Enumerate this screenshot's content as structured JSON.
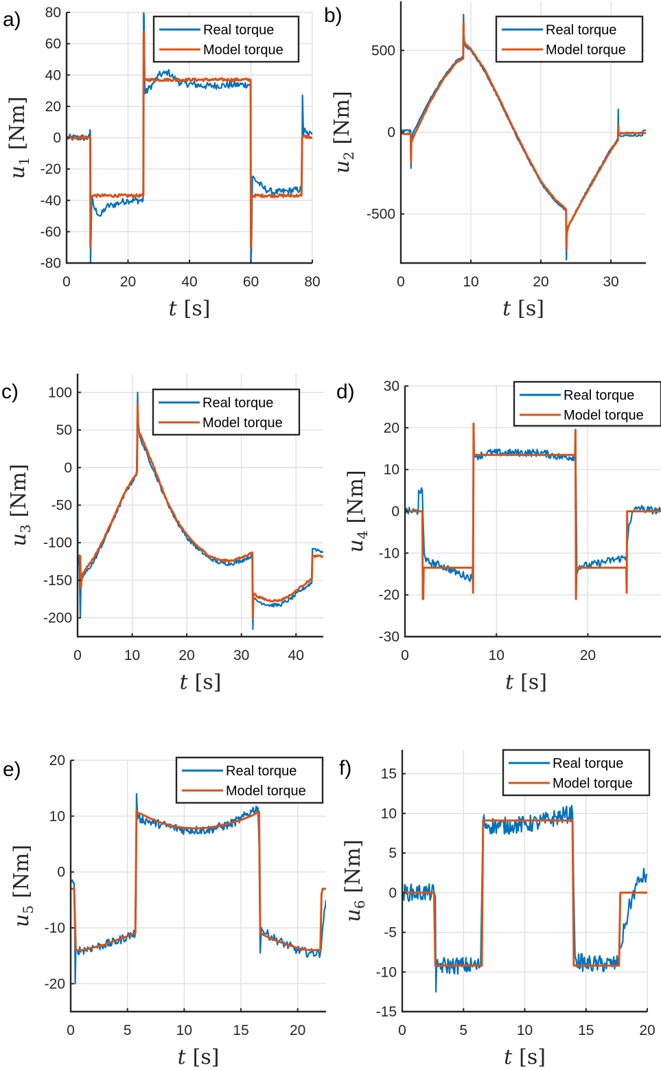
{
  "chart_data": [
    {
      "id": "a",
      "type": "line",
      "panel_label": "a)",
      "title": "",
      "xlabel": "t [s]",
      "ylabel": "u1 [Nm]",
      "ylabel_var": "u",
      "ylabel_sub": "1",
      "ylabel_unit": "[Nm]",
      "xlabel_var": "t",
      "xlabel_unit": "[s]",
      "xlim": [
        0,
        80
      ],
      "ylim": [
        -80,
        80
      ],
      "xticks": [
        0,
        20,
        40,
        60,
        80
      ],
      "yticks": [
        -80,
        -60,
        -40,
        -20,
        0,
        20,
        40,
        60,
        80
      ],
      "grid": true,
      "legend": {
        "position": "top-right",
        "entries": [
          "Real torque",
          "Model torque"
        ]
      },
      "series": [
        {
          "name": "Real torque",
          "color": "#0072BD",
          "noise": 2.2,
          "t": [
            0,
            7.5,
            7.6,
            7.7,
            7.8,
            8.2,
            9,
            11,
            13,
            15,
            18,
            20,
            24.9,
            25.1,
            25.2,
            25.5,
            27,
            28,
            30,
            32,
            33,
            35,
            37,
            45,
            59.8,
            59.9,
            60.0,
            60.2,
            60.5,
            62,
            64,
            66,
            68,
            72,
            76.4,
            76.6,
            76.8,
            77.1,
            77.5,
            78,
            80
          ],
          "v": [
            0,
            0,
            5,
            4,
            -80,
            -38,
            -45,
            -50,
            -44,
            -43,
            -41,
            -40,
            -40,
            80,
            78,
            28,
            32,
            34,
            40,
            41,
            42,
            38,
            35,
            33,
            34,
            34,
            -80,
            -70,
            -25,
            -28,
            -32,
            -34,
            -35,
            -34,
            -33,
            -33,
            27,
            2,
            6,
            3,
            2
          ]
        },
        {
          "name": "Model torque",
          "color": "#D95319",
          "noise": 0.9,
          "t": [
            0,
            7.7,
            7.75,
            7.8,
            7.9,
            24.9,
            25.0,
            25.1,
            25.2,
            25.3,
            59.8,
            59.9,
            60.0,
            60.1,
            60.2,
            76.5,
            76.7,
            77.0,
            80
          ],
          "v": [
            0,
            0,
            -70,
            -70,
            -37,
            -37,
            -37,
            68,
            68,
            37,
            37,
            37,
            -70,
            -70,
            -37,
            -37,
            0,
            1,
            0
          ]
        }
      ]
    },
    {
      "id": "b",
      "type": "line",
      "panel_label": "b)",
      "title": "",
      "xlabel": "t [s]",
      "ylabel": "u2 [Nm]",
      "ylabel_var": "u",
      "ylabel_sub": "2",
      "ylabel_unit": "[Nm]",
      "xlabel_var": "t",
      "xlabel_unit": "[s]",
      "xlim": [
        0,
        35
      ],
      "ylim": [
        -800,
        800
      ],
      "xticks": [
        0,
        10,
        20,
        30
      ],
      "yticks": [
        -500,
        0,
        500
      ],
      "grid": true,
      "legend": {
        "position": "top-right",
        "entries": [
          "Real torque",
          "Model torque"
        ]
      },
      "series": [
        {
          "name": "Real torque",
          "color": "#0072BD",
          "noise": 5,
          "t": [
            0,
            1.4,
            1.45,
            1.5,
            1.7,
            2,
            4,
            6,
            8,
            8.9,
            8.95,
            9.0,
            9.1,
            9.3,
            10,
            12,
            14,
            16,
            18,
            20,
            22,
            23.6,
            23.65,
            23.7,
            23.8,
            24.1,
            26,
            28,
            30,
            31.0,
            31.05,
            31.1,
            31.3,
            34.5,
            34.6,
            35
          ],
          "v": [
            10,
            10,
            -220,
            -60,
            -10,
            20,
            190,
            330,
            440,
            460,
            720,
            600,
            540,
            520,
            500,
            370,
            200,
            20,
            -150,
            -310,
            -420,
            -480,
            -780,
            -650,
            -580,
            -560,
            -400,
            -250,
            -100,
            -40,
            140,
            -20,
            -20,
            -20,
            10,
            10
          ]
        },
        {
          "name": "Model torque",
          "color": "#D95319",
          "noise": 3,
          "t": [
            0,
            1.4,
            1.45,
            1.5,
            1.8,
            2,
            4,
            6,
            8,
            8.9,
            8.95,
            9.0,
            9.2,
            10,
            12,
            14,
            16,
            18,
            20,
            22,
            23.6,
            23.65,
            23.7,
            23.9,
            24.1,
            26,
            28,
            30,
            31.0,
            31.05,
            31.1,
            35
          ],
          "v": [
            -10,
            -10,
            -180,
            -60,
            -30,
            -10,
            170,
            320,
            430,
            450,
            670,
            560,
            540,
            510,
            380,
            210,
            30,
            -140,
            -300,
            -410,
            -470,
            -720,
            -620,
            -580,
            -560,
            -410,
            -260,
            -110,
            -50,
            40,
            -5,
            -5
          ]
        }
      ]
    },
    {
      "id": "c",
      "type": "line",
      "panel_label": "c)",
      "title": "",
      "xlabel": "t [s]",
      "ylabel": "u3 [Nm]",
      "ylabel_var": "u",
      "ylabel_sub": "3",
      "ylabel_unit": "[Nm]",
      "xlabel_var": "t",
      "xlabel_unit": "[s]",
      "xlim": [
        0,
        45
      ],
      "ylim": [
        -225,
        125
      ],
      "xticks": [
        0,
        10,
        20,
        30,
        40
      ],
      "yticks": [
        -200,
        -150,
        -100,
        -50,
        0,
        50,
        100
      ],
      "grid": true,
      "legend": {
        "position": "top-right",
        "entries": [
          "Real torque",
          "Model torque"
        ]
      },
      "series": [
        {
          "name": "Real torque",
          "color": "#0072BD",
          "noise": 2.5,
          "t": [
            0,
            0.05,
            0.1,
            0.3,
            0.5,
            0.6,
            0.7,
            1,
            3,
            5,
            7,
            9,
            10.8,
            10.9,
            11.0,
            11.1,
            11.4,
            12,
            14,
            16,
            18,
            20,
            22,
            24,
            26,
            28,
            30,
            32.0,
            32.1,
            32.2,
            32.4,
            33,
            35,
            37,
            39,
            41,
            42.9,
            43.0,
            43.3,
            45
          ],
          "v": [
            0,
            -130,
            -120,
            -120,
            -200,
            -160,
            -150,
            -145,
            -125,
            -95,
            -62,
            -30,
            -10,
            40,
            100,
            60,
            40,
            30,
            -5,
            -40,
            -70,
            -93,
            -108,
            -120,
            -127,
            -128,
            -124,
            -117,
            -215,
            -175,
            -175,
            -178,
            -183,
            -183,
            -175,
            -163,
            -153,
            -108,
            -108,
            -112
          ]
        },
        {
          "name": "Model torque",
          "color": "#D95319",
          "noise": 1.2,
          "t": [
            0,
            0.5,
            0.6,
            0.8,
            1,
            3,
            5,
            7,
            9,
            10.8,
            10.9,
            11.0,
            11.1,
            11.4,
            12,
            14,
            16,
            18,
            20,
            22,
            24,
            26,
            28,
            30,
            32.0,
            32.1,
            32.2,
            32.4,
            33,
            35,
            37,
            39,
            41,
            42.9,
            43.0,
            45
          ],
          "v": [
            -118,
            -118,
            -160,
            -145,
            -140,
            -120,
            -92,
            -60,
            -28,
            -8,
            -5,
            85,
            50,
            45,
            35,
            0,
            -38,
            -68,
            -90,
            -105,
            -117,
            -123,
            -124,
            -120,
            -113,
            -200,
            -170,
            -168,
            -172,
            -177,
            -177,
            -170,
            -158,
            -148,
            -118,
            -118
          ]
        }
      ]
    },
    {
      "id": "d",
      "type": "line",
      "panel_label": "d)",
      "title": "",
      "xlabel": "t [s]",
      "ylabel": "u4 [Nm]",
      "ylabel_var": "u",
      "ylabel_sub": "4",
      "ylabel_unit": "[Nm]",
      "xlabel_var": "t",
      "xlabel_unit": "[s]",
      "xlim": [
        0,
        28
      ],
      "ylim": [
        -30,
        30
      ],
      "xticks": [
        0,
        10,
        20
      ],
      "yticks": [
        -30,
        -20,
        -10,
        0,
        10,
        20,
        30
      ],
      "grid": true,
      "legend": {
        "position": "top-right",
        "entries": [
          "Real torque",
          "Model torque"
        ]
      },
      "series": [
        {
          "name": "Real torque",
          "color": "#0072BD",
          "noise": 0.9,
          "t": [
            0,
            1.45,
            1.5,
            1.9,
            1.95,
            2.1,
            2.3,
            4,
            6,
            7.3,
            7.4,
            7.5,
            7.7,
            9,
            12,
            15,
            17,
            18.6,
            18.7,
            18.8,
            19.1,
            20,
            22,
            24.2,
            24.3,
            24.5,
            25,
            25.6,
            26,
            28
          ],
          "v": [
            0,
            0,
            5,
            5,
            0,
            -10,
            -12,
            -13,
            -15,
            -16,
            -14,
            13,
            13,
            14,
            14,
            14,
            13,
            13,
            8,
            -15,
            -13,
            -13,
            -12,
            -11,
            -8,
            -3,
            0,
            1,
            0.5,
            0
          ]
        },
        {
          "name": "Model torque",
          "color": "#D95319",
          "noise": 0,
          "t": [
            0,
            1.9,
            1.95,
            2.0,
            2.05,
            7.4,
            7.45,
            7.5,
            7.55,
            18.6,
            18.65,
            18.7,
            18.75,
            24.2,
            24.25,
            24.3,
            24.35,
            28
          ],
          "v": [
            0,
            0,
            -21,
            -21,
            -13.5,
            -13.5,
            -19.5,
            21,
            13.5,
            13.5,
            19.5,
            -21,
            -13.5,
            -13.5,
            -19.5,
            0,
            0,
            0
          ]
        }
      ]
    },
    {
      "id": "e",
      "type": "line",
      "panel_label": "e)",
      "title": "",
      "xlabel": "t [s]",
      "ylabel": "u5 [Nm]",
      "ylabel_var": "u",
      "ylabel_sub": "5",
      "ylabel_unit": "[Nm]",
      "xlabel_var": "t",
      "xlabel_unit": "[s]",
      "xlim": [
        0,
        22.5
      ],
      "ylim": [
        -25,
        20
      ],
      "xticks": [
        0,
        5,
        10,
        15,
        20
      ],
      "yticks": [
        -20,
        -10,
        0,
        10,
        20
      ],
      "grid": true,
      "legend": {
        "position": "top-right",
        "entries": [
          "Real torque",
          "Model torque"
        ]
      },
      "series": [
        {
          "name": "Real torque",
          "color": "#0072BD",
          "noise": 0.8,
          "t": [
            0,
            0.3,
            0.35,
            0.4,
            0.45,
            0.6,
            1,
            2,
            3,
            4,
            5,
            5.7,
            5.75,
            5.8,
            5.9,
            6.2,
            7,
            8,
            9,
            10,
            11,
            12,
            13,
            14,
            15,
            16,
            16.5,
            16.6,
            16.7,
            16.8,
            16.9,
            17.2,
            18,
            19,
            20,
            21,
            22.0,
            22.2,
            22.5
          ],
          "v": [
            -2,
            -2,
            -8,
            -20,
            -14,
            -14,
            -14,
            -13.5,
            -13,
            -12.5,
            -11.5,
            -11,
            -6,
            14,
            9.5,
            9.5,
            9,
            8.5,
            8,
            7.5,
            7.5,
            7.5,
            8,
            8.5,
            9.5,
            11,
            11.5,
            5,
            -14.5,
            -10,
            -10.5,
            -11,
            -12,
            -13,
            -14,
            -14.5,
            -14.5,
            -10,
            -5
          ]
        },
        {
          "name": "Model torque",
          "color": "#D95319",
          "noise": 0,
          "t": [
            0,
            0.3,
            0.45,
            0.6,
            1,
            2,
            3,
            4,
            5,
            5.7,
            5.8,
            5.9,
            6.2,
            7,
            8,
            9,
            10,
            11,
            12,
            13,
            14,
            15,
            16,
            16.6,
            16.7,
            16.8,
            17,
            18,
            19,
            20,
            21,
            22,
            22.1,
            22.2,
            22.5
          ],
          "v": [
            -3,
            -3,
            -14,
            -14,
            -14,
            -13.5,
            -13,
            -12.2,
            -11.5,
            -11,
            11,
            10.6,
            10.4,
            9.6,
            8.8,
            8.2,
            7.9,
            7.8,
            7.9,
            8.2,
            8.7,
            9.3,
            10.1,
            10.8,
            -11,
            -11,
            -11.3,
            -12.2,
            -13,
            -13.6,
            -14,
            -14,
            -4,
            -3,
            -3
          ]
        }
      ]
    },
    {
      "id": "f",
      "type": "line",
      "panel_label": "f)",
      "title": "",
      "xlabel": "t [s]",
      "ylabel": "u6 [Nm]",
      "ylabel_var": "u",
      "ylabel_sub": "6",
      "ylabel_unit": "[Nm]",
      "xlabel_var": "t",
      "xlabel_unit": "[s]",
      "xlim": [
        0,
        20
      ],
      "ylim": [
        -15,
        18
      ],
      "xticks": [
        0,
        5,
        10,
        15,
        20
      ],
      "yticks": [
        -15,
        -10,
        -5,
        0,
        5,
        10,
        15
      ],
      "grid": true,
      "legend": {
        "position": "top-right",
        "entries": [
          "Real torque",
          "Model torque"
        ]
      },
      "series": [
        {
          "name": "Real torque",
          "color": "#0072BD",
          "noise": 1.1,
          "t": [
            0,
            2.6,
            2.7,
            2.75,
            2.8,
            3.0,
            4,
            5,
            6,
            6.4,
            6.5,
            6.6,
            7,
            8,
            9,
            10,
            11,
            12,
            13,
            13.9,
            14.0,
            14.1,
            14.2,
            15,
            16,
            17,
            17.6,
            17.8,
            18.2,
            18.6,
            19,
            19.5,
            20
          ],
          "v": [
            0,
            0,
            -0.5,
            -12.5,
            -9.5,
            -9.2,
            -9.2,
            -9.2,
            -9.2,
            -9.2,
            0,
            9,
            8.5,
            8.4,
            8.5,
            8.6,
            8.8,
            9.2,
            9.7,
            10,
            0,
            -8,
            -8.5,
            -9,
            -9,
            -9,
            -9,
            -7,
            -4,
            -1.5,
            0.5,
            1.8,
            2.3
          ]
        },
        {
          "name": "Model torque",
          "color": "#D95319",
          "noise": 0,
          "t": [
            0,
            2.6,
            2.7,
            6.5,
            6.6,
            13.9,
            14.0,
            17.7,
            17.8,
            20
          ],
          "v": [
            0,
            0,
            -9.2,
            -9.2,
            9.1,
            9.1,
            -9.2,
            -9.2,
            0,
            0
          ]
        }
      ]
    }
  ]
}
